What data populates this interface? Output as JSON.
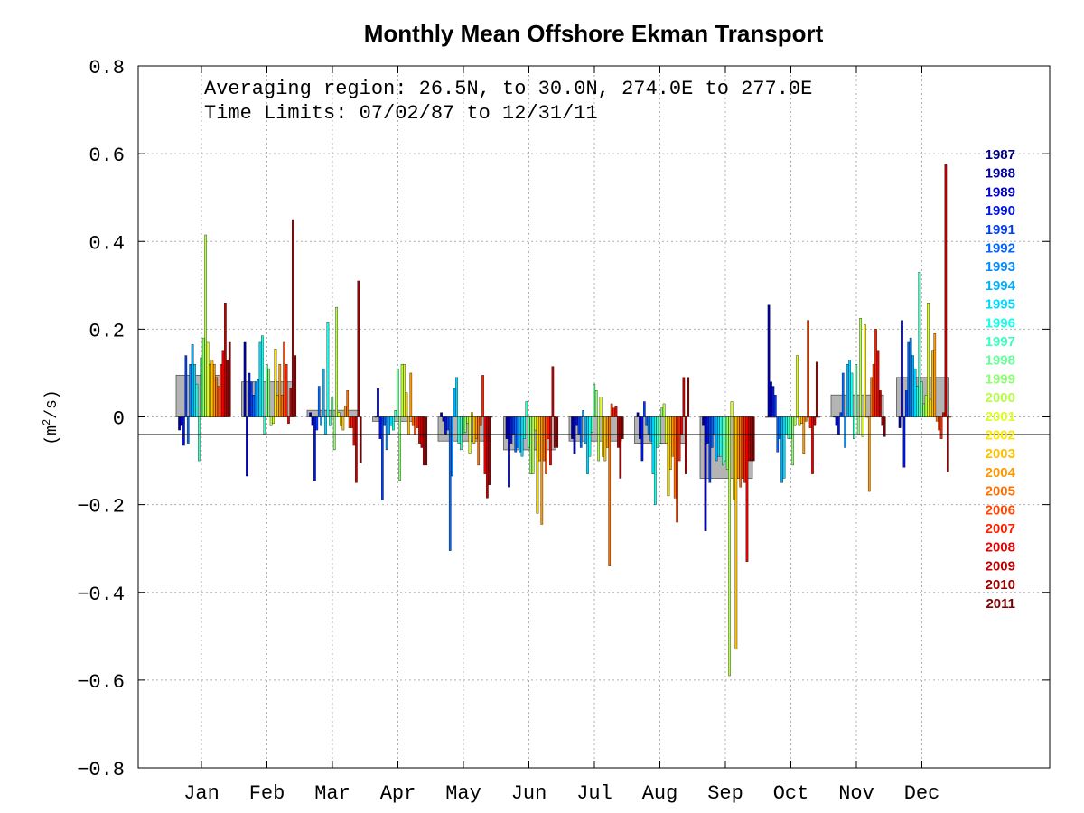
{
  "chart_data": {
    "type": "bar",
    "title": "Monthly Mean Offshore Ekman Transport",
    "ylabel": "(m²/s)",
    "ylabel_base": "(m",
    "ylabel_sup": "2",
    "ylabel_tail": "/s)",
    "ylim": [
      -0.8,
      0.8
    ],
    "yticks": [
      -0.8,
      -0.6,
      -0.4,
      -0.2,
      0,
      0.2,
      0.4,
      0.6,
      0.8
    ],
    "ytick_labels": [
      "−0.8",
      "−0.6",
      "−0.4",
      "−0.2",
      "0",
      "0.2",
      "0.4",
      "0.6",
      "0.8"
    ],
    "grid": true,
    "legend_position": "right",
    "annotations": [
      "Averaging region: 26.5N, to 30.0N, 274.0E to 277.0E",
      "Time Limits: 07/02/87 to 12/31/11"
    ],
    "categories": [
      "Jan",
      "Feb",
      "Mar",
      "Apr",
      "May",
      "Jun",
      "Jul",
      "Aug",
      "Sep",
      "Oct",
      "Nov",
      "Dec"
    ],
    "years": [
      "1987",
      "1988",
      "1989",
      "1990",
      "1991",
      "1992",
      "1993",
      "1994",
      "1995",
      "1996",
      "1997",
      "1998",
      "1999",
      "2000",
      "2001",
      "2002",
      "2003",
      "2004",
      "2005",
      "2006",
      "2007",
      "2008",
      "2009",
      "2010",
      "2011"
    ],
    "year_colors": [
      "#000080",
      "#00009f",
      "#0000c6",
      "#0014e8",
      "#003cff",
      "#0064ff",
      "#008cff",
      "#00b0ff",
      "#00d8ff",
      "#14ffe8",
      "#3cffc0",
      "#64ff98",
      "#8cff70",
      "#b4ff48",
      "#dcff20",
      "#ffe600",
      "#ffc000",
      "#ff9800",
      "#ff7000",
      "#ff4800",
      "#ff2000",
      "#e80000",
      "#c00000",
      "#a00000",
      "#800000"
    ],
    "mean_values": [
      0.095,
      0.08,
      0.015,
      -0.01,
      -0.055,
      -0.075,
      -0.055,
      -0.06,
      -0.14,
      0.0,
      0.05,
      0.09
    ],
    "mean_color": "#b4b4b4",
    "series_by_month": [
      [
        null,
        -0.03,
        -0.02,
        -0.065,
        0.14,
        -0.06,
        0.12,
        0.165,
        0.12,
        0.075,
        -0.1,
        0.135,
        0.18,
        0.415,
        0.17,
        0.12,
        0.13,
        0.12,
        0.09,
        0.07,
        0.12,
        0.15,
        0.26,
        0.13,
        0.17
      ],
      [
        null,
        0.17,
        -0.135,
        0.1,
        0.08,
        0.05,
        0.08,
        0.085,
        0.17,
        0.185,
        -0.04,
        0.12,
        0.11,
        -0.02,
        -0.015,
        0.155,
        0.05,
        0.12,
        0.05,
        0.17,
        0.12,
        -0.015,
        0.065,
        0.45,
        0.14
      ],
      [
        null,
        0.01,
        -0.02,
        -0.145,
        -0.03,
        0.07,
        -0.02,
        0.11,
        -0.04,
        0.215,
        -0.02,
        0.045,
        -0.075,
        0.25,
        0.01,
        -0.02,
        -0.03,
        0.025,
        0.06,
        -0.025,
        -0.025,
        -0.065,
        -0.15,
        0.31,
        -0.105
      ],
      [
        null,
        0.0,
        0.065,
        -0.05,
        -0.19,
        -0.02,
        -0.075,
        -0.04,
        -0.02,
        -0.03,
        0.015,
        0.11,
        -0.145,
        0.12,
        0.12,
        0.055,
        -0.04,
        0.1,
        -0.02,
        -0.04,
        -0.025,
        -0.06,
        -0.07,
        -0.11,
        -0.11
      ],
      [
        null,
        0.01,
        -0.01,
        -0.04,
        -0.03,
        -0.305,
        -0.135,
        0.065,
        0.09,
        -0.06,
        -0.075,
        -0.04,
        -0.035,
        -0.015,
        -0.085,
        0.01,
        -0.06,
        -0.05,
        -0.11,
        -0.02,
        0.095,
        -0.13,
        -0.185,
        -0.155,
        0.0
      ],
      [
        null,
        -0.05,
        -0.16,
        -0.06,
        -0.04,
        -0.08,
        -0.07,
        -0.08,
        -0.09,
        -0.05,
        0.035,
        -0.07,
        -0.13,
        -0.13,
        -0.03,
        -0.22,
        -0.1,
        -0.245,
        -0.1,
        -0.13,
        -0.05,
        -0.11,
        0.115,
        -0.07,
        -0.07
      ]
    ],
    "series_by_month_2": [
      [
        null,
        -0.05,
        -0.085,
        -0.02,
        -0.04,
        -0.07,
        0.015,
        -0.06,
        -0.13,
        -0.09,
        -0.035,
        0.075,
        0.06,
        -0.1,
        0.045,
        -0.09,
        -0.1,
        -0.07,
        -0.34,
        0.03,
        0.02,
        0.025,
        -0.07,
        -0.14,
        -0.05
      ],
      [
        null,
        0.01,
        -0.05,
        -0.1,
        0.035,
        -0.02,
        -0.04,
        -0.055,
        -0.13,
        -0.2,
        -0.07,
        -0.06,
        0.02,
        0.03,
        -0.06,
        -0.18,
        -0.12,
        -0.09,
        -0.185,
        -0.24,
        -0.1,
        -0.04,
        0.09,
        -0.13,
        0.09
      ],
      [
        null,
        -0.02,
        -0.26,
        -0.06,
        -0.15,
        -0.07,
        -0.04,
        -0.1,
        -0.09,
        -0.09,
        -0.11,
        -0.1,
        -0.12,
        -0.59,
        0.035,
        -0.19,
        -0.53,
        -0.14,
        -0.16,
        -0.14,
        -0.15,
        -0.33,
        -0.1,
        -0.1,
        -0.1
      ],
      [
        null,
        0.255,
        0.08,
        0.07,
        0.05,
        -0.08,
        -0.05,
        -0.15,
        -0.14,
        -0.04,
        -0.05,
        -0.05,
        -0.11,
        -0.02,
        0.14,
        -0.02,
        -0.015,
        -0.085,
        -0.01,
        0.22,
        -0.025,
        -0.13,
        -0.02,
        0.125,
        0.0
      ],
      [
        null,
        0.0,
        -0.02,
        -0.04,
        0.01,
        0.1,
        -0.07,
        0.12,
        0.13,
        0.1,
        -0.05,
        0.12,
        -0.04,
        0.225,
        -0.045,
        0.21,
        0.0,
        -0.17,
        0.09,
        0.12,
        0.2,
        0.15,
        0.06,
        -0.02,
        -0.045
      ],
      [
        null,
        -0.025,
        0.22,
        -0.115,
        0.06,
        0.17,
        0.18,
        0.14,
        0.11,
        0.07,
        0.33,
        0.08,
        0.03,
        0.05,
        0.26,
        0.04,
        0.15,
        0.19,
        -0.01,
        -0.03,
        -0.05,
        0.01,
        0.575,
        -0.125,
        0.0
      ]
    ]
  }
}
